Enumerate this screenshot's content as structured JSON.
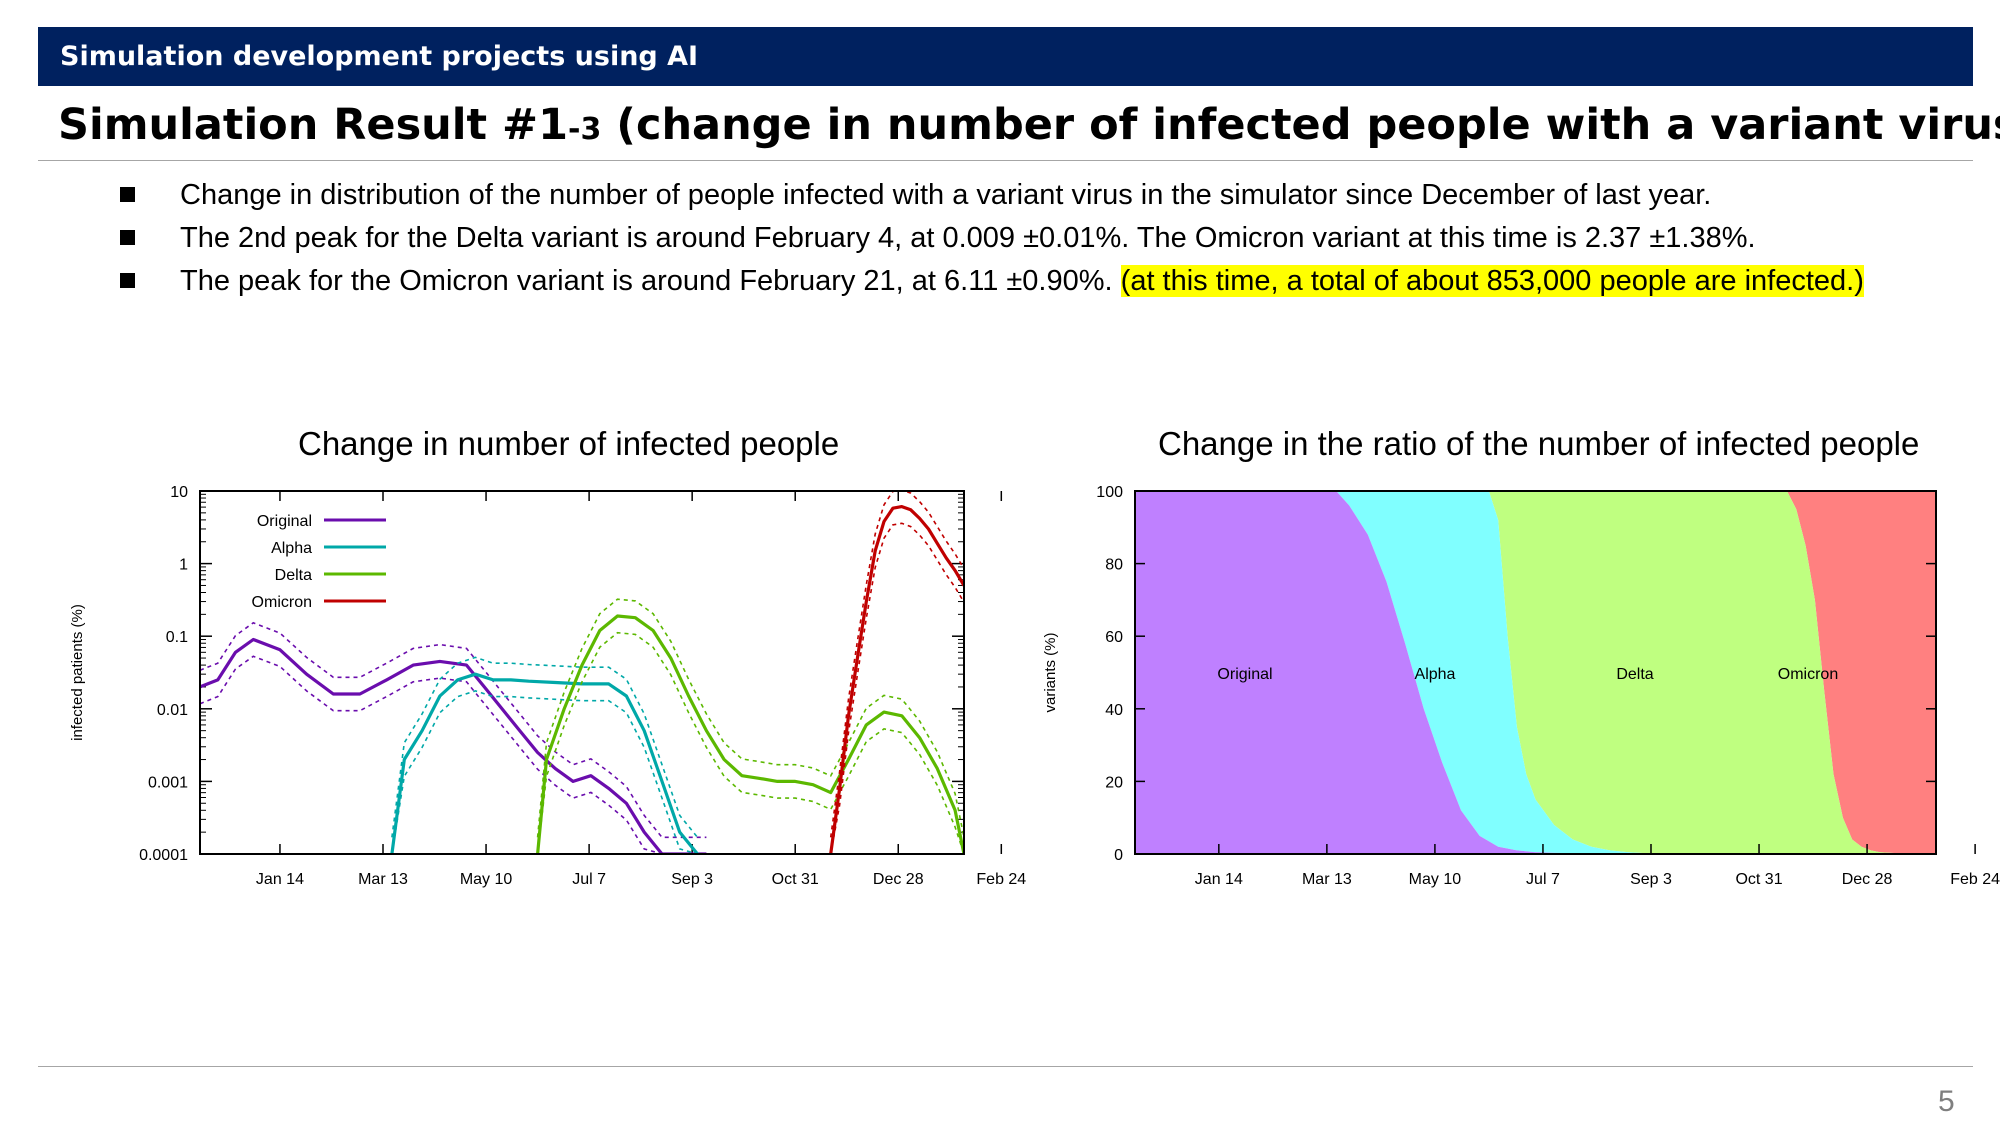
{
  "header": {
    "banner": "Simulation development projects using AI",
    "title_main": "Simulation Result #1",
    "title_sub": "-3",
    "title_rest": " (change in number of infected people with a variant virus)"
  },
  "bullets": [
    {
      "text": "Change in distribution of the number of people infected with a variant virus in the simulator since December of last year.",
      "highlight": ""
    },
    {
      "text": "The 2nd peak for the Delta variant is around February 4, at 0.009 ±0.01%. The Omicron variant at this time is 2.37 ±1.38%.",
      "highlight": ""
    },
    {
      "text": "The peak for the Omicron variant is around February 21, at 6.11 ±0.90%. ",
      "highlight": "(at this time, a total of about 853,000 people are infected.)"
    }
  ],
  "page_number": "5",
  "colors": {
    "banner": "#00215f",
    "original": "#6a0dad",
    "alpha": "#00a8a8",
    "delta": "#5cb800",
    "omicron": "#c00000",
    "area_original": "#bf80ff",
    "area_alpha": "#80ffff",
    "area_delta": "#bfff80",
    "area_omicron": "#ff8080"
  },
  "chart_data": [
    {
      "type": "line",
      "title": "Change in number of infected people",
      "xlabel": "",
      "ylabel": "infected patients (%)",
      "yscale": "log",
      "ylim": [
        0.0001,
        10
      ],
      "yticks": [
        "0.0001",
        "0.001",
        "0.01",
        "0.1",
        "1",
        "10"
      ],
      "x_tick_labels": [
        "Jan 14",
        "Mar 13",
        "May 10",
        "Jul 7",
        "Sep 3",
        "Oct 31",
        "Dec 28",
        "Feb 24"
      ],
      "x_unit": "days since start (ticks every 58 days starting at day 45)",
      "legend_position": "top-left",
      "series": [
        {
          "name": "Original",
          "color": "#6a0dad",
          "x": [
            0,
            10,
            20,
            30,
            45,
            60,
            75,
            90,
            105,
            120,
            135,
            150,
            160,
            170,
            180,
            190,
            200,
            210,
            220,
            230,
            240,
            250,
            260,
            270,
            280,
            285
          ],
          "y": [
            0.02,
            0.025,
            0.06,
            0.09,
            0.065,
            0.03,
            0.016,
            0.016,
            0.025,
            0.04,
            0.045,
            0.04,
            0.02,
            0.01,
            0.005,
            0.0025,
            0.0015,
            0.001,
            0.0012,
            0.0008,
            0.0005,
            0.0002,
            0.0001,
            0.0001,
            0.0001,
            0.0001
          ]
        },
        {
          "name": "Alpha",
          "color": "#00a8a8",
          "x": [
            108,
            115,
            125,
            135,
            145,
            155,
            165,
            175,
            185,
            200,
            215,
            230,
            240,
            250,
            260,
            270,
            280
          ],
          "y": [
            0.0001,
            0.002,
            0.005,
            0.015,
            0.025,
            0.03,
            0.025,
            0.025,
            0.024,
            0.023,
            0.022,
            0.022,
            0.015,
            0.005,
            0.001,
            0.0002,
            0.0001
          ]
        },
        {
          "name": "Delta",
          "color": "#5cb800",
          "x": [
            190,
            195,
            205,
            215,
            225,
            235,
            245,
            255,
            265,
            275,
            285,
            295,
            305,
            315,
            325,
            335,
            345,
            355,
            365,
            375,
            385,
            395,
            405,
            415,
            425,
            430
          ],
          "y": [
            0.0001,
            0.002,
            0.01,
            0.04,
            0.12,
            0.19,
            0.18,
            0.12,
            0.05,
            0.015,
            0.005,
            0.002,
            0.0012,
            0.0011,
            0.001,
            0.001,
            0.0009,
            0.0007,
            0.002,
            0.006,
            0.009,
            0.008,
            0.004,
            0.0015,
            0.0004,
            0.0001
          ]
        },
        {
          "name": "Omicron",
          "color": "#c00000",
          "x": [
            355,
            360,
            365,
            370,
            375,
            380,
            385,
            390,
            395,
            400,
            405,
            410,
            415,
            420,
            425,
            430
          ],
          "y": [
            0.0001,
            0.0008,
            0.008,
            0.05,
            0.3,
            1.5,
            3.8,
            5.8,
            6.1,
            5.5,
            4.2,
            3.0,
            1.9,
            1.2,
            0.8,
            0.5
          ]
        }
      ]
    },
    {
      "type": "area",
      "title": "Change in the ratio of the number of infected people",
      "xlabel": "",
      "ylabel": "variants (%)",
      "ylim": [
        0,
        100
      ],
      "yticks": [
        "0",
        "20",
        "40",
        "60",
        "80",
        "100"
      ],
      "x_tick_labels": [
        "Jan 14",
        "Mar 13",
        "May 10",
        "Jul 7",
        "Sep 3",
        "Oct 31",
        "Dec 28",
        "Feb 24"
      ],
      "x_unit": "days since start",
      "area_labels": [
        "Original",
        "Alpha",
        "Delta",
        "Omicron"
      ],
      "stack_boundaries": {
        "original_top": {
          "x": [
            0,
            108,
            115,
            125,
            135,
            145,
            155,
            165,
            175,
            185,
            195,
            205,
            215,
            225,
            240,
            260,
            430
          ],
          "y": [
            100,
            100,
            96,
            88,
            75,
            58,
            40,
            25,
            12,
            5,
            2,
            1,
            0.5,
            0.3,
            0.2,
            0.1,
            0
          ]
        },
        "alpha_top": {
          "x": [
            0,
            190,
            195,
            200,
            205,
            210,
            215,
            225,
            235,
            245,
            255,
            265,
            275,
            430
          ],
          "y": [
            100,
            100,
            92,
            60,
            35,
            22,
            15,
            8,
            4,
            2,
            1,
            0.5,
            0.2,
            0
          ]
        },
        "delta_top": {
          "x": [
            0,
            350,
            355,
            360,
            365,
            370,
            375,
            380,
            385,
            390,
            395,
            400,
            410,
            430
          ],
          "y": [
            100,
            100,
            95,
            85,
            70,
            45,
            22,
            10,
            4,
            2,
            1,
            0.5,
            0.2,
            0
          ]
        }
      }
    }
  ]
}
